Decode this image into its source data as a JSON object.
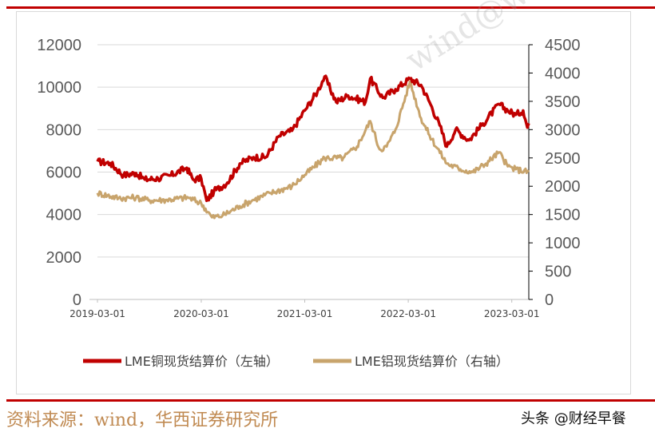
{
  "watermark": "wind@wind.com",
  "source_note": "资料来源：wind，华西证券研究所",
  "brand": "头条 @财经早餐",
  "chart_data": {
    "type": "line",
    "title": "",
    "left_axis": {
      "range": [
        0,
        12000
      ],
      "ticks": [
        0,
        2000,
        4000,
        6000,
        8000,
        10000,
        12000
      ]
    },
    "right_axis": {
      "range": [
        0,
        4500
      ],
      "ticks": [
        0,
        500,
        1000,
        1500,
        2000,
        2500,
        3000,
        3500,
        4000,
        4500
      ]
    },
    "x_range": [
      "2019-03-01",
      "2023-04-30"
    ],
    "x_ticks": [
      "2019-03-01",
      "2020-03-01",
      "2021-03-01",
      "2022-03-01",
      "2023-03-01"
    ],
    "grid": "horizontal",
    "legend": "bottom",
    "series": [
      {
        "name": "LME铜现货结算价（左轴）",
        "axis": "left",
        "color": "#c00000",
        "points": [
          [
            "2019-03-01",
            6500
          ],
          [
            "2019-04-15",
            6420
          ],
          [
            "2019-06-01",
            5850
          ],
          [
            "2019-07-15",
            5950
          ],
          [
            "2019-08-15",
            5650
          ],
          [
            "2019-10-01",
            5700
          ],
          [
            "2019-11-15",
            5850
          ],
          [
            "2020-01-10",
            6200
          ],
          [
            "2020-02-01",
            5650
          ],
          [
            "2020-03-01",
            5700
          ],
          [
            "2020-03-20",
            4650
          ],
          [
            "2020-04-15",
            5100
          ],
          [
            "2020-06-01",
            5500
          ],
          [
            "2020-07-15",
            6400
          ],
          [
            "2020-09-01",
            6700
          ],
          [
            "2020-10-15",
            6700
          ],
          [
            "2020-12-01",
            7700
          ],
          [
            "2021-01-15",
            7950
          ],
          [
            "2021-03-01",
            8900
          ],
          [
            "2021-04-15",
            9800
          ],
          [
            "2021-05-10",
            10500
          ],
          [
            "2021-06-20",
            9300
          ],
          [
            "2021-08-01",
            9600
          ],
          [
            "2021-10-01",
            9300
          ],
          [
            "2021-10-18",
            10400
          ],
          [
            "2021-12-01",
            9500
          ],
          [
            "2022-01-15",
            9900
          ],
          [
            "2022-03-07",
            10400
          ],
          [
            "2022-04-15",
            10100
          ],
          [
            "2022-05-15",
            9300
          ],
          [
            "2022-06-20",
            8200
          ],
          [
            "2022-07-15",
            7200
          ],
          [
            "2022-08-15",
            8000
          ],
          [
            "2022-10-01",
            7500
          ],
          [
            "2022-11-15",
            8200
          ],
          [
            "2023-01-15",
            9200
          ],
          [
            "2023-02-15",
            8900
          ],
          [
            "2023-03-15",
            8700
          ],
          [
            "2023-04-10",
            8900
          ],
          [
            "2023-04-25",
            8100
          ],
          [
            "2023-04-30",
            8300
          ]
        ]
      },
      {
        "name": "LME铝现货结算价（右轴）",
        "axis": "right",
        "color": "#c8a46c",
        "points": [
          [
            "2019-03-01",
            1880
          ],
          [
            "2019-05-15",
            1790
          ],
          [
            "2019-07-15",
            1800
          ],
          [
            "2019-09-01",
            1750
          ],
          [
            "2019-11-01",
            1760
          ],
          [
            "2020-01-15",
            1800
          ],
          [
            "2020-03-01",
            1700
          ],
          [
            "2020-04-08",
            1450
          ],
          [
            "2020-05-15",
            1480
          ],
          [
            "2020-07-15",
            1650
          ],
          [
            "2020-09-01",
            1760
          ],
          [
            "2020-11-01",
            1880
          ],
          [
            "2021-01-15",
            2000
          ],
          [
            "2021-03-01",
            2200
          ],
          [
            "2021-05-10",
            2500
          ],
          [
            "2021-07-15",
            2500
          ],
          [
            "2021-09-01",
            2700
          ],
          [
            "2021-10-18",
            3150
          ],
          [
            "2021-11-20",
            2650
          ],
          [
            "2021-12-15",
            2700
          ],
          [
            "2022-01-15",
            3000
          ],
          [
            "2022-03-07",
            3850
          ],
          [
            "2022-04-15",
            3200
          ],
          [
            "2022-05-15",
            2900
          ],
          [
            "2022-07-15",
            2400
          ],
          [
            "2022-09-01",
            2300
          ],
          [
            "2022-10-15",
            2250
          ],
          [
            "2022-11-30",
            2400
          ],
          [
            "2023-01-15",
            2600
          ],
          [
            "2023-02-15",
            2350
          ],
          [
            "2023-03-15",
            2300
          ],
          [
            "2023-04-30",
            2250
          ]
        ]
      }
    ]
  }
}
